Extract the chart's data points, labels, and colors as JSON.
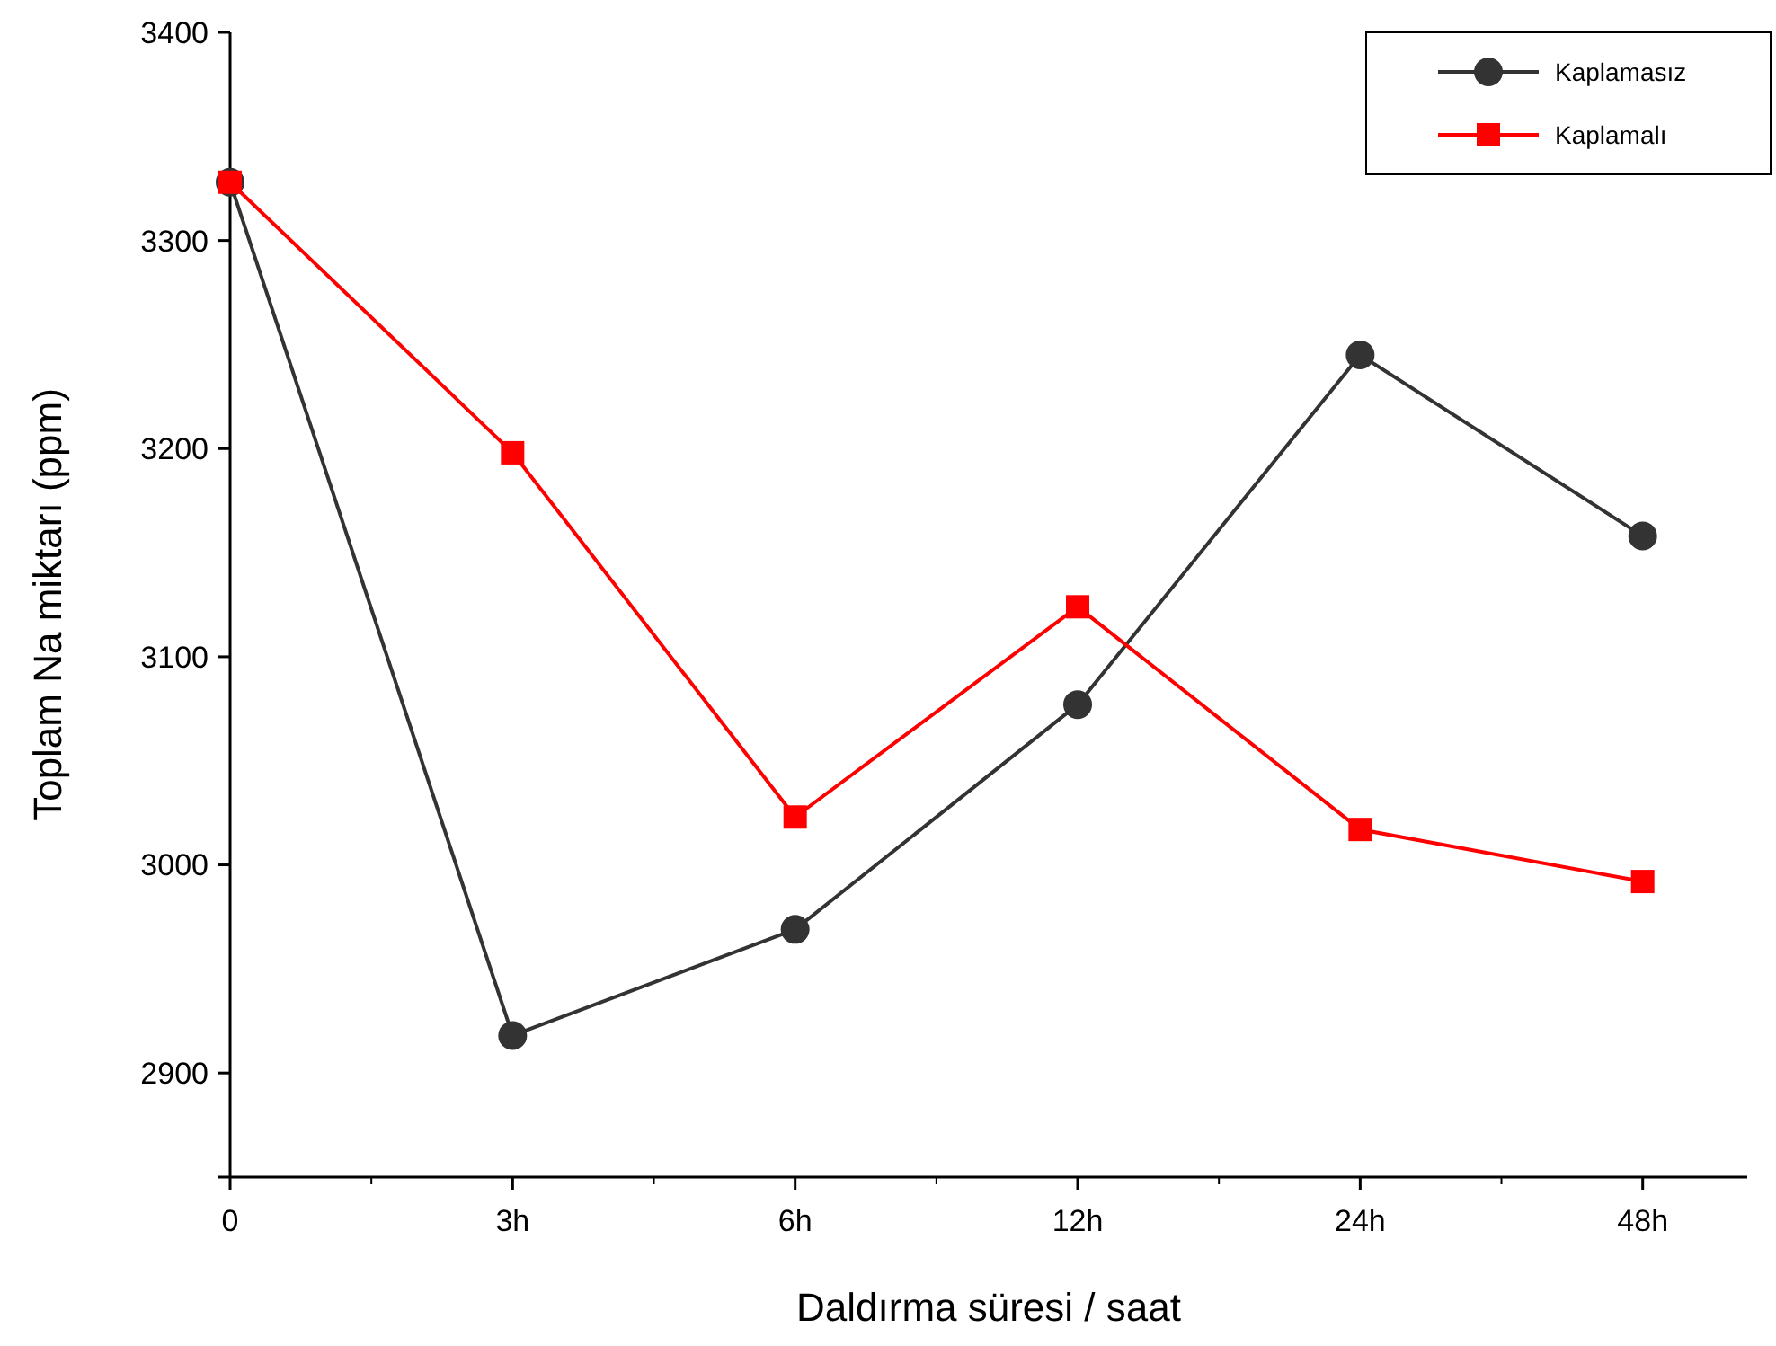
{
  "chart_data": {
    "type": "line",
    "xlabel": "Daldırma süresi / saat",
    "ylabel": "Toplam Na miktarı (ppm)",
    "categories": [
      "0",
      "3h",
      "6h",
      "12h",
      "24h",
      "48h"
    ],
    "series": [
      {
        "name": "Kaplamasız",
        "color": "#333333",
        "marker": "circle",
        "values": [
          3328,
          2918,
          2969,
          3077,
          3245,
          3158
        ]
      },
      {
        "name": "Kaplamalı",
        "color": "#ff0000",
        "marker": "square",
        "values": [
          3328,
          3198,
          3023,
          3124,
          3017,
          2992
        ]
      }
    ],
    "ylim": [
      2850,
      3400
    ],
    "yticks": [
      {
        "value": 2850,
        "label": null
      },
      2900,
      3000,
      3100,
      3200,
      3300,
      3400
    ],
    "grid": false,
    "legend": "top right",
    "line_style": "solid"
  }
}
